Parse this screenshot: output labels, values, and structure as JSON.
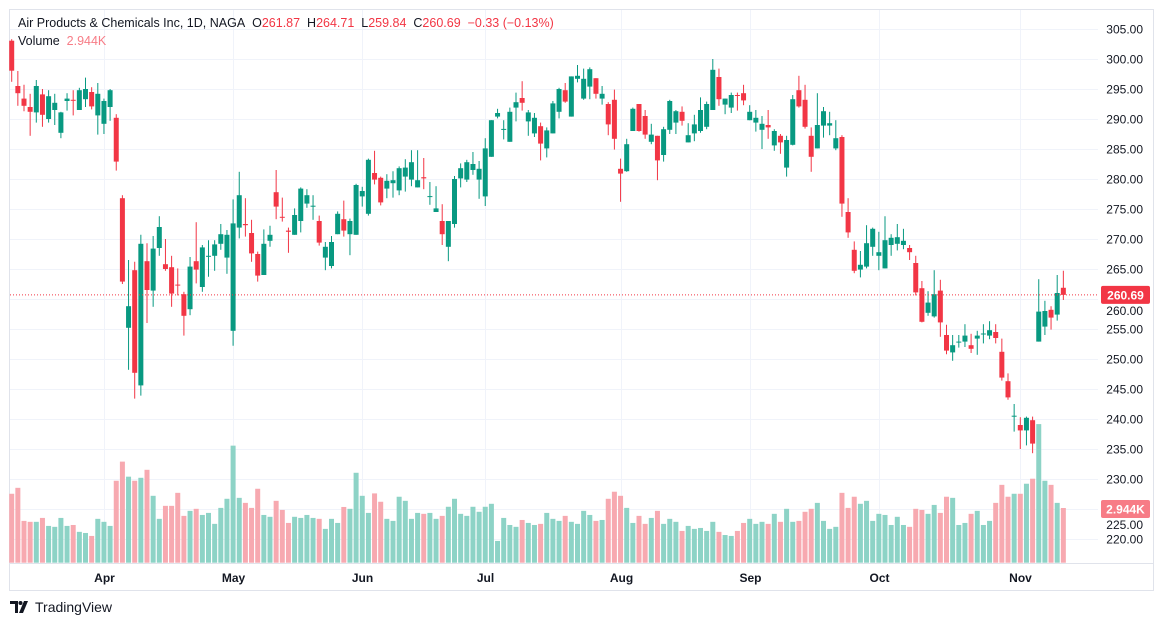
{
  "header": {
    "symbol_title": "Air Products & Chemicals Inc, 1D, NAGA",
    "open_label": "O",
    "open": "261.87",
    "high_label": "H",
    "high": "264.71",
    "low_label": "L",
    "low": "259.84",
    "close_label": "C",
    "close": "260.69",
    "change": "−0.33 (−0.13%)",
    "volume_label": "Volume",
    "volume_value": "2.944K"
  },
  "footer": {
    "brand": "TradingView",
    "logo_icon": "tradingview-logo-icon"
  },
  "colors": {
    "up": "#089981",
    "down": "#f23645",
    "volume_up": "#8dd3c6",
    "volume_down": "#f7a9b0",
    "grid": "#f0f3fa",
    "last_price_label": "#f23645",
    "volume_label": "#f77c86"
  },
  "chart_data": {
    "type": "candlestick",
    "interval": "1D",
    "y_axis": {
      "min": 220,
      "max": 305,
      "ticks": [
        "305.00",
        "300.00",
        "295.00",
        "290.00",
        "285.00",
        "280.00",
        "275.00",
        "270.00",
        "265.00",
        "260.00",
        "255.00",
        "250.00",
        "245.00",
        "240.00",
        "235.00",
        "230.00",
        "225.00",
        "220.00"
      ],
      "position": "right"
    },
    "last_price": 260.69,
    "last_price_label": "260.69",
    "last_volume_label": "2.944K",
    "grid": true,
    "x_ticks": [
      {
        "label": "Apr",
        "bar_index": 15
      },
      {
        "label": "May",
        "bar_index": 36
      },
      {
        "label": "Jun",
        "bar_index": 57
      },
      {
        "label": "Jul",
        "bar_index": 77
      },
      {
        "label": "Aug",
        "bar_index": 99
      },
      {
        "label": "Sep",
        "bar_index": 120
      },
      {
        "label": "Oct",
        "bar_index": 141
      },
      {
        "label": "Nov",
        "bar_index": 164
      }
    ],
    "ohlc": [
      [
        303.05,
        303.3,
        296.2,
        298.05
      ],
      [
        295.5,
        298,
        292.2,
        294.3
      ],
      [
        293.4,
        295.7,
        291.3,
        292.2
      ],
      [
        292,
        294.2,
        287.2,
        291.2
      ],
      [
        291.1,
        296.5,
        289.4,
        295.5
      ],
      [
        294.1,
        295,
        288.7,
        290.7
      ],
      [
        290,
        294.8,
        289.4,
        293.8
      ],
      [
        291.5,
        294.2,
        289,
        292.7
      ],
      [
        287.7,
        291.2,
        286.8,
        291.1
      ],
      [
        293,
        294.3,
        291.4,
        293.4
      ],
      [
        293.2,
        294.8,
        290.6,
        293.1
      ],
      [
        291.5,
        295.2,
        291.5,
        294.8
      ],
      [
        293.3,
        296.9,
        292,
        295
      ],
      [
        294.5,
        295.3,
        291.6,
        292.1
      ],
      [
        290.6,
        296,
        287.4,
        294.2
      ],
      [
        289.2,
        293.4,
        287.5,
        293
      ],
      [
        292,
        295,
        289.7,
        294.8
      ],
      [
        290.2,
        290.8,
        281.4,
        282.9
      ],
      [
        276.8,
        277.3,
        262.5,
        262.9
      ],
      [
        255.2,
        266.5,
        248.2,
        258.8
      ],
      [
        264.8,
        266.2,
        243.4,
        247.7
      ],
      [
        245.6,
        270.7,
        243.9,
        269.2
      ],
      [
        266.3,
        269.3,
        256,
        261.5
      ],
      [
        261.4,
        270.5,
        258.7,
        268.4
      ],
      [
        268.5,
        273.8,
        267.2,
        272
      ],
      [
        265.8,
        270,
        264.7,
        265
      ],
      [
        265.3,
        267.2,
        258.7,
        260.9
      ],
      [
        262.4,
        265.1,
        260.6,
        262.35
      ],
      [
        260.8,
        261.2,
        253.9,
        257.2
      ],
      [
        258.3,
        267,
        257.3,
        265.4
      ],
      [
        266.3,
        272.8,
        262.6,
        264.9
      ],
      [
        262,
        269,
        261.2,
        268.6
      ],
      [
        267.1,
        269.8,
        263.7,
        267.2
      ],
      [
        267.2,
        269.8,
        264.7,
        269.1
      ],
      [
        269.2,
        272.5,
        268.2,
        270.8
      ],
      [
        266.9,
        271.5,
        264.2,
        270.7
      ],
      [
        254.7,
        276.6,
        252.2,
        272.6
      ],
      [
        271.9,
        281.2,
        270.1,
        277.3
      ],
      [
        272.5,
        276.8,
        270.4,
        272.3
      ],
      [
        271,
        273.2,
        266.2,
        267.6
      ],
      [
        267.5,
        267.9,
        262.9,
        263.9
      ],
      [
        264,
        271.6,
        264,
        269.2
      ],
      [
        269.7,
        272.2,
        268.7,
        270.7
      ],
      [
        277.8,
        281.5,
        273.3,
        275.4
      ],
      [
        273.7,
        276.9,
        272.9,
        273.6
      ],
      [
        271.4,
        271.9,
        267.7,
        271.2
      ],
      [
        270.7,
        275.1,
        270.7,
        274
      ],
      [
        273,
        278.6,
        271.1,
        278.4
      ],
      [
        275.9,
        278.3,
        275.2,
        277.3
      ],
      [
        275.5,
        277.3,
        273.2,
        275.55
      ],
      [
        273,
        273.9,
        268.9,
        269.4
      ],
      [
        266.9,
        269.5,
        264.8,
        268.7
      ],
      [
        265.5,
        270.5,
        265.1,
        269.5
      ],
      [
        270.8,
        274.6,
        270.8,
        274.2
      ],
      [
        273.3,
        276.4,
        270.4,
        271.4
      ],
      [
        270.8,
        273.4,
        267.3,
        273
      ],
      [
        270.7,
        279.2,
        270.7,
        279
      ],
      [
        277.1,
        278.7,
        275.4,
        278
      ],
      [
        274.2,
        283.4,
        273.9,
        283.2
      ],
      [
        281,
        284.7,
        279.1,
        279.9
      ],
      [
        280.2,
        280.4,
        275.6,
        276.1
      ],
      [
        278.4,
        280.8,
        276.8,
        279.7
      ],
      [
        279.3,
        281.3,
        276.9,
        279.8
      ],
      [
        278.1,
        282.1,
        277.3,
        281.8
      ],
      [
        280.4,
        283.3,
        277.9,
        281.9
      ],
      [
        279.9,
        284.8,
        278.8,
        282.8
      ],
      [
        278.6,
        284.8,
        278.6,
        279.8
      ],
      [
        280.3,
        283.5,
        278.3,
        280.1
      ],
      [
        277.1,
        279.5,
        275.7,
        277.15
      ],
      [
        274.5,
        278.8,
        274.5,
        275.1
      ],
      [
        273,
        275.8,
        269,
        270.8
      ],
      [
        268.7,
        273,
        266.3,
        273
      ],
      [
        272.5,
        280.5,
        271.9,
        280
      ],
      [
        280.1,
        282.6,
        278.6,
        281.8
      ],
      [
        279.9,
        283.2,
        279.5,
        282.8
      ],
      [
        281.5,
        284.5,
        280.7,
        282.5
      ],
      [
        279.9,
        283,
        276.7,
        281.7
      ],
      [
        277.1,
        286.8,
        275.5,
        285.1
      ],
      [
        283.7,
        289.8,
        283.7,
        289.8
      ],
      [
        290.4,
        291.7,
        290.1,
        291
      ],
      [
        288.3,
        289.8,
        286.6,
        288.35
      ],
      [
        286.2,
        291.9,
        286.2,
        291.2
      ],
      [
        291.9,
        294.4,
        289.6,
        292.8
      ],
      [
        293.5,
        296.3,
        291.4,
        292.7
      ],
      [
        289.6,
        291.5,
        287.2,
        291.1
      ],
      [
        287.6,
        291,
        287,
        290.2
      ],
      [
        288.8,
        289.4,
        283.1,
        285.9
      ],
      [
        285.1,
        288.6,
        283.6,
        288.1
      ],
      [
        287.6,
        293,
        287.6,
        292.6
      ],
      [
        291.2,
        295.2,
        290.1,
        295
      ],
      [
        294.8,
        296,
        292.7,
        292.9
      ],
      [
        290.4,
        297.1,
        290.4,
        297.1
      ],
      [
        296.7,
        299,
        296.1,
        297.2
      ],
      [
        293.4,
        298.4,
        293.2,
        296.7
      ],
      [
        295.4,
        298.6,
        293.3,
        298.3
      ],
      [
        296.8,
        296.8,
        293.4,
        294.2
      ],
      [
        293.4,
        295.5,
        292.4,
        294.2
      ],
      [
        292.5,
        292.8,
        287.3,
        289.1
      ],
      [
        293.2,
        294.9,
        284.9,
        286.7
      ],
      [
        281.7,
        283.4,
        276.2,
        280.9
      ],
      [
        281.3,
        286.7,
        281.2,
        285.8
      ],
      [
        288,
        291.9,
        288,
        291.7
      ],
      [
        292.5,
        292.5,
        287.9,
        288
      ],
      [
        290.5,
        291.5,
        286.7,
        287.4
      ],
      [
        286.2,
        289.2,
        285.8,
        287.4
      ],
      [
        287.2,
        287.2,
        279.8,
        283.1
      ],
      [
        284,
        288.7,
        282.9,
        288.3
      ],
      [
        288.2,
        293.2,
        287.5,
        293
      ],
      [
        289.4,
        291.5,
        287.5,
        291.3
      ],
      [
        291.2,
        292.1,
        288.9,
        289.7
      ],
      [
        286.1,
        289.3,
        286.1,
        287.3
      ],
      [
        287.6,
        290.7,
        286.3,
        289.1
      ],
      [
        288,
        293.6,
        287.7,
        291.5
      ],
      [
        288.7,
        292.9,
        288.3,
        292.5
      ],
      [
        291.5,
        300,
        291.5,
        298.2
      ],
      [
        297,
        298.4,
        292.2,
        293.3
      ],
      [
        292.4,
        293.4,
        290.8,
        293.4
      ],
      [
        291.9,
        294.4,
        291,
        294
      ],
      [
        294,
        294.4,
        291.4,
        293.9
      ],
      [
        294.3,
        295.7,
        292.3,
        293.1
      ],
      [
        289.8,
        292.3,
        289.8,
        291.2
      ],
      [
        289.4,
        291.5,
        287.9,
        290.2
      ],
      [
        288.2,
        290.5,
        285,
        289.2
      ],
      [
        289,
        291.5,
        286.7,
        288.6
      ],
      [
        285.6,
        288.3,
        284.7,
        288
      ],
      [
        287.2,
        287.5,
        284.2,
        286.1
      ],
      [
        281.9,
        287.2,
        280.4,
        286.5
      ],
      [
        285.7,
        294,
        285.6,
        293.3
      ],
      [
        294.8,
        297.2,
        291.9,
        292.1
      ],
      [
        293.2,
        295.7,
        288.4,
        288.7
      ],
      [
        287.2,
        288.6,
        281.2,
        283.7
      ],
      [
        285.1,
        294.3,
        285.1,
        289
      ],
      [
        288.9,
        292,
        286.9,
        291.3
      ],
      [
        288.9,
        291.2,
        287.3,
        289.3
      ],
      [
        285.1,
        289.8,
        284.8,
        286.8
      ],
      [
        287,
        287.3,
        273.7,
        275.9
      ],
      [
        274.5,
        276.8,
        270.2,
        271.1
      ],
      [
        268.2,
        269.6,
        264.3,
        264.7
      ],
      [
        264.9,
        268,
        263.6,
        265.7
      ],
      [
        265.4,
        272.3,
        265.1,
        269.3
      ],
      [
        268.7,
        271.9,
        267.2,
        271.7
      ],
      [
        267.2,
        271.2,
        264.8,
        267.8
      ],
      [
        265.1,
        273.8,
        265.1,
        269.8
      ],
      [
        269,
        270.8,
        267.2,
        270.2
      ],
      [
        269.2,
        272.5,
        268.1,
        270.3
      ],
      [
        269,
        271.7,
        268.3,
        269.7
      ],
      [
        268.5,
        269,
        266.5,
        267.8
      ],
      [
        266,
        267.2,
        260.6,
        261.1
      ],
      [
        261.8,
        263,
        256.1,
        256.2
      ],
      [
        257.7,
        261.3,
        257.2,
        259.4
      ],
      [
        257.1,
        264.8,
        256.9,
        260.8
      ],
      [
        261.4,
        263.2,
        253.7,
        256.1
      ],
      [
        254,
        255.7,
        250.8,
        251.4
      ],
      [
        251.1,
        254,
        249.7,
        252.3
      ],
      [
        252.8,
        254,
        251.9,
        252.9
      ],
      [
        252.9,
        255.8,
        252,
        253.9
      ],
      [
        252.3,
        254.2,
        251,
        251.7
      ],
      [
        253.4,
        254.7,
        250.7,
        253.9
      ],
      [
        254.2,
        255.8,
        252.6,
        254.25
      ],
      [
        253.9,
        256.3,
        253.3,
        254.8
      ],
      [
        254.5,
        255.8,
        252.6,
        253.5
      ],
      [
        251.2,
        253.4,
        246.4,
        246.9
      ],
      [
        246.3,
        247.6,
        243.2,
        243.6
      ],
      [
        240.5,
        242.5,
        237.9,
        240.55
      ],
      [
        239,
        240.3,
        235,
        238.1
      ],
      [
        238.1,
        240.4,
        235.6,
        240.2
      ],
      [
        239.8,
        240.4,
        234.3,
        235.9
      ],
      [
        252.9,
        263.3,
        252.9,
        257.9
      ],
      [
        255.4,
        259.7,
        254,
        258
      ],
      [
        258.2,
        258.8,
        254.9,
        256.9
      ],
      [
        257.4,
        264,
        256.4,
        261
      ],
      [
        261.87,
        264.71,
        259.84,
        260.69
      ]
    ],
    "volume_k": [
      3.71,
      4.03,
      2.25,
      2.2,
      2.2,
      2.41,
      1.98,
      1.93,
      2.41,
      1.98,
      2.03,
      1.66,
      1.6,
      1.44,
      2.36,
      2.2,
      1.98,
      4.41,
      5.44,
      4.63,
      4.41,
      4.57,
      5.0,
      3.6,
      2.36,
      3.06,
      3.06,
      3.76,
      2.52,
      2.79,
      2.9,
      2.57,
      2.68,
      2.09,
      2.95,
      3.44,
      6.3,
      3.49,
      3.22,
      2.95,
      3.98,
      2.57,
      2.47,
      3.33,
      2.84,
      2.14,
      2.47,
      2.41,
      2.57,
      2.41,
      2.36,
      1.82,
      2.36,
      2.14,
      3.0,
      2.9,
      4.84,
      3.6,
      2.68,
      3.73,
      3.28,
      2.36,
      2.25,
      3.55,
      3.33,
      2.36,
      2.68,
      2.63,
      2.68,
      2.36,
      2.52,
      3.01,
      3.44,
      2.63,
      2.52,
      3.01,
      2.74,
      3.01,
      3.17,
      1.17,
      2.41,
      2.03,
      1.93,
      2.3,
      2.14,
      2.03,
      2.09,
      2.68,
      2.36,
      2.25,
      2.52,
      2.2,
      2.09,
      2.79,
      2.57,
      2.25,
      2.3,
      3.44,
      3.82,
      3.6,
      2.95,
      2.14,
      2.52,
      2.09,
      2.41,
      2.79,
      2.09,
      2.36,
      2.2,
      1.71,
      1.98,
      1.82,
      1.87,
      1.71,
      2.2,
      1.66,
      1.49,
      1.44,
      1.71,
      2.14,
      2.36,
      2.09,
      2.2,
      2.09,
      2.63,
      2.2,
      2.9,
      2.2,
      2.25,
      2.74,
      2.9,
      3.22,
      2.25,
      1.82,
      1.93,
      3.76,
      2.95,
      3.55,
      3.17,
      3.33,
      2.25,
      2.63,
      2.57,
      2.03,
      2.47,
      2.03,
      1.93,
      2.9,
      2.84,
      2.63,
      3.11,
      2.68,
      3.55,
      3.49,
      2.03,
      2.14,
      2.63,
      2.79,
      2.03,
      2.25,
      3.22,
      4.19,
      3.55,
      3.71,
      3.71,
      4.25,
      4.52,
      7.46,
      4.41,
      4.19,
      3.22,
      2.944
    ]
  }
}
